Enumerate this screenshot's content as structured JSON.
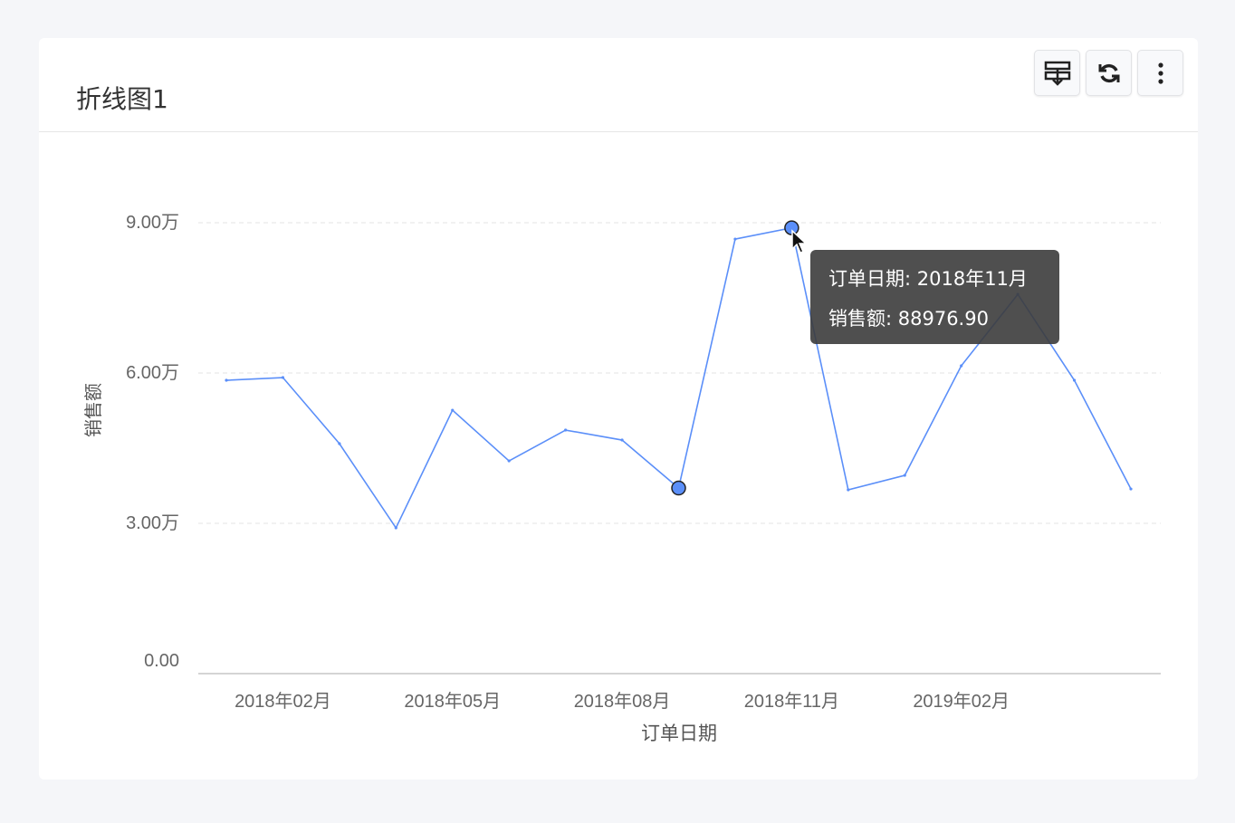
{
  "card": {
    "title": "折线图1"
  },
  "toolbar": {
    "icons": [
      "export-icon",
      "refresh-icon",
      "more-vertical-icon"
    ]
  },
  "chart_data": {
    "type": "line",
    "title": "",
    "xlabel": "订单日期",
    "ylabel": "销售额",
    "x": [
      "2018年01月",
      "2018年02月",
      "2018年03月",
      "2018年04月",
      "2018年05月",
      "2018年06月",
      "2018年07月",
      "2018年08月",
      "2018年09月",
      "2018年10月",
      "2018年11月",
      "2018年12月",
      "2019年01月",
      "2019年02月",
      "2019年03月",
      "2019年04月",
      "2019年05月"
    ],
    "series": [
      {
        "values": [
          58550,
          59090,
          45900,
          29090,
          52580,
          42460,
          48610,
          46620,
          37040,
          86740,
          88976.9,
          36680,
          39570,
          61440,
          75710,
          58550,
          36860
        ],
        "color": "#5b8ff9"
      }
    ],
    "x_tick_labels": [
      "2018年02月",
      "2018年05月",
      "2018年08月",
      "2018年11月",
      "2019年02月"
    ],
    "y_tick_labels": [
      "0.00",
      "3.00万",
      "6.00万",
      "9.00万"
    ],
    "y_ticks": [
      0,
      30000,
      60000,
      90000
    ],
    "ylim": [
      0,
      90000
    ],
    "grid": "horizontal dashed",
    "highlighted": [
      "2018年09月",
      "2018年11月"
    ]
  },
  "tooltip": {
    "line1": "订单日期: 2018年11月",
    "line2": "销售额: 88976.90"
  }
}
